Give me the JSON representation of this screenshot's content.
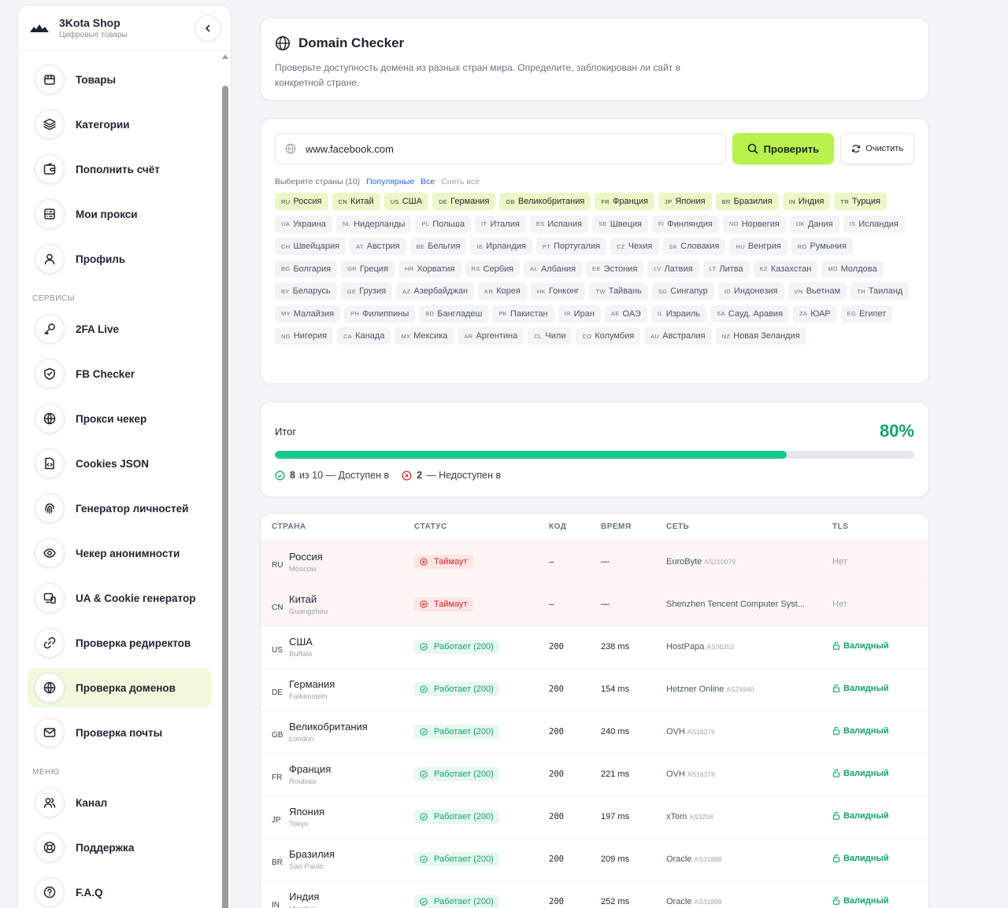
{
  "brand": {
    "name": "3Kota Shop",
    "subtitle": "Цифровые товары"
  },
  "sidebar": {
    "main": [
      {
        "label": "Товары",
        "icon": "box-icon"
      },
      {
        "label": "Категории",
        "icon": "layers-icon"
      },
      {
        "label": "Пополнить счёт",
        "icon": "wallet-icon"
      },
      {
        "label": "Мои прокси",
        "icon": "server-icon"
      },
      {
        "label": "Профиль",
        "icon": "user-icon"
      }
    ],
    "services_title": "СЕРВИСЫ",
    "services": [
      {
        "label": "2FA Live",
        "icon": "key-icon"
      },
      {
        "label": "FB Checker",
        "icon": "shield-icon"
      },
      {
        "label": "Прокси чекер",
        "icon": "globe-check-icon"
      },
      {
        "label": "Cookies JSON",
        "icon": "file-code-icon"
      },
      {
        "label": "Генератор личностей",
        "icon": "fingerprint-icon"
      },
      {
        "label": "Чекер анонимности",
        "icon": "eye-icon"
      },
      {
        "label": "UA & Cookie генератор",
        "icon": "devices-icon"
      },
      {
        "label": "Проверка редиректов",
        "icon": "link-icon"
      },
      {
        "label": "Проверка доменов",
        "icon": "globe-icon",
        "active": true
      },
      {
        "label": "Проверка почты",
        "icon": "mail-icon"
      }
    ],
    "menu_title": "МЕНЮ",
    "menu": [
      {
        "label": "Канал",
        "icon": "users-icon"
      },
      {
        "label": "Поддержка",
        "icon": "lifebuoy-icon"
      },
      {
        "label": "F.A.Q",
        "icon": "help-circle-icon"
      }
    ]
  },
  "header": {
    "title": "Domain Checker",
    "description": "Проверьте доступность домена из разных стран мира. Определите, заблокирован ли сайт в конкретной стране."
  },
  "search": {
    "value": "www.facebook.com",
    "check_label": "Проверить",
    "clear_label": "Очистить",
    "select_label": "Выберите страны (10)",
    "popular_label": "Популярные",
    "all_label": "Все",
    "reset_label": "Снять все"
  },
  "countries": [
    {
      "code": "RU",
      "name": "Россия",
      "selected": true
    },
    {
      "code": "CN",
      "name": "Китай",
      "selected": true
    },
    {
      "code": "US",
      "name": "США",
      "selected": true
    },
    {
      "code": "DE",
      "name": "Германия",
      "selected": true
    },
    {
      "code": "GB",
      "name": "Великобритания",
      "selected": true
    },
    {
      "code": "FR",
      "name": "Франция",
      "selected": true
    },
    {
      "code": "JP",
      "name": "Япония",
      "selected": true
    },
    {
      "code": "BR",
      "name": "Бразилия",
      "selected": true
    },
    {
      "code": "IN",
      "name": "Индия",
      "selected": true
    },
    {
      "code": "TR",
      "name": "Турция",
      "selected": true
    },
    {
      "code": "UA",
      "name": "Украина"
    },
    {
      "code": "NL",
      "name": "Нидерланды"
    },
    {
      "code": "PL",
      "name": "Польша"
    },
    {
      "code": "IT",
      "name": "Италия"
    },
    {
      "code": "ES",
      "name": "Испания"
    },
    {
      "code": "SE",
      "name": "Швеция"
    },
    {
      "code": "FI",
      "name": "Финляндия"
    },
    {
      "code": "NO",
      "name": "Норвегия"
    },
    {
      "code": "DK",
      "name": "Дания"
    },
    {
      "code": "IS",
      "name": "Исландия"
    },
    {
      "code": "CH",
      "name": "Швейцария"
    },
    {
      "code": "AT",
      "name": "Австрия"
    },
    {
      "code": "BE",
      "name": "Бельгия"
    },
    {
      "code": "IE",
      "name": "Ирландия"
    },
    {
      "code": "PT",
      "name": "Португалия"
    },
    {
      "code": "CZ",
      "name": "Чехия"
    },
    {
      "code": "SK",
      "name": "Словакия"
    },
    {
      "code": "HU",
      "name": "Венгрия"
    },
    {
      "code": "RO",
      "name": "Румыния"
    },
    {
      "code": "BG",
      "name": "Болгария"
    },
    {
      "code": "GR",
      "name": "Греция"
    },
    {
      "code": "HR",
      "name": "Хорватия"
    },
    {
      "code": "RS",
      "name": "Сербия"
    },
    {
      "code": "AL",
      "name": "Албания"
    },
    {
      "code": "EE",
      "name": "Эстония"
    },
    {
      "code": "LV",
      "name": "Латвия"
    },
    {
      "code": "LT",
      "name": "Литва"
    },
    {
      "code": "KZ",
      "name": "Казахстан"
    },
    {
      "code": "MD",
      "name": "Молдова"
    },
    {
      "code": "BY",
      "name": "Беларусь"
    },
    {
      "code": "GE",
      "name": "Грузия"
    },
    {
      "code": "AZ",
      "name": "Азербайджан"
    },
    {
      "code": "KR",
      "name": "Корея"
    },
    {
      "code": "HK",
      "name": "Гонконг"
    },
    {
      "code": "TW",
      "name": "Тайвань"
    },
    {
      "code": "SG",
      "name": "Сингапур"
    },
    {
      "code": "ID",
      "name": "Индонезия"
    },
    {
      "code": "VN",
      "name": "Вьетнам"
    },
    {
      "code": "TH",
      "name": "Таиланд"
    },
    {
      "code": "MY",
      "name": "Малайзия"
    },
    {
      "code": "PH",
      "name": "Филиппины"
    },
    {
      "code": "BD",
      "name": "Бангладеш"
    },
    {
      "code": "PK",
      "name": "Пакистан"
    },
    {
      "code": "IR",
      "name": "Иран"
    },
    {
      "code": "AE",
      "name": "ОАЭ"
    },
    {
      "code": "IL",
      "name": "Израиль"
    },
    {
      "code": "SA",
      "name": "Сауд. Аравия"
    },
    {
      "code": "ZA",
      "name": "ЮАР"
    },
    {
      "code": "EG",
      "name": "Египет"
    },
    {
      "code": "NG",
      "name": "Нигерия"
    },
    {
      "code": "CA",
      "name": "Канада"
    },
    {
      "code": "MX",
      "name": "Мексика"
    },
    {
      "code": "AR",
      "name": "Аргентина"
    },
    {
      "code": "CL",
      "name": "Чили"
    },
    {
      "code": "CO",
      "name": "Колумбия"
    },
    {
      "code": "AU",
      "name": "Австралия"
    },
    {
      "code": "NZ",
      "name": "Новая Зеландия"
    }
  ],
  "summary": {
    "label": "Итог",
    "percent_text": "80%",
    "progress": 0.8,
    "available_count": "8",
    "available_text": "из 10 — Доступен в",
    "unavailable_count": "2",
    "unavailable_text": "— Недоступен в"
  },
  "table": {
    "headers": [
      "СТРАНА",
      "СТАТУС",
      "КОД",
      "ВРЕМЯ",
      "СЕТЬ",
      "TLS"
    ],
    "rows": [
      {
        "code": "RU",
        "country": "Россия",
        "city": "Moscow",
        "status": "Таймаут",
        "ok": false,
        "http": "–",
        "time": "—",
        "network": "EuroByte",
        "asn": "AS210079",
        "tls": "Нет"
      },
      {
        "code": "CN",
        "country": "Китай",
        "city": "Guangzhou",
        "status": "Таймаут",
        "ok": false,
        "http": "–",
        "time": "—",
        "network": "Shenzhen Tencent Computer Syst...",
        "asn": "",
        "tls": "Нет"
      },
      {
        "code": "US",
        "country": "США",
        "city": "Buffalo",
        "status": "Работает (200)",
        "ok": true,
        "http": "200",
        "time": "238 ms",
        "network": "HostPapa",
        "asn": "AS36352",
        "tls": "Валидный"
      },
      {
        "code": "DE",
        "country": "Германия",
        "city": "Falkenstein",
        "status": "Работает (200)",
        "ok": true,
        "http": "200",
        "time": "154 ms",
        "network": "Hetzner Online",
        "asn": "AS24940",
        "tls": "Валидный"
      },
      {
        "code": "GB",
        "country": "Великобритания",
        "city": "London",
        "status": "Работает (200)",
        "ok": true,
        "http": "200",
        "time": "240 ms",
        "network": "OVH",
        "asn": "AS16276",
        "tls": "Валидный"
      },
      {
        "code": "FR",
        "country": "Франция",
        "city": "Roubaix",
        "status": "Работает (200)",
        "ok": true,
        "http": "200",
        "time": "221 ms",
        "network": "OVH",
        "asn": "AS16276",
        "tls": "Валидный"
      },
      {
        "code": "JP",
        "country": "Япония",
        "city": "Tokyo",
        "status": "Работает (200)",
        "ok": true,
        "http": "200",
        "time": "197 ms",
        "network": "xTom",
        "asn": "AS3258",
        "tls": "Валидный"
      },
      {
        "code": "BR",
        "country": "Бразилия",
        "city": "Sao Paulo",
        "status": "Работает (200)",
        "ok": true,
        "http": "200",
        "time": "209 ms",
        "network": "Oracle",
        "asn": "AS31898",
        "tls": "Валидный"
      },
      {
        "code": "IN",
        "country": "Индия",
        "city": "Mumbai",
        "status": "Работает (200)",
        "ok": true,
        "http": "200",
        "time": "252 ms",
        "network": "Oracle",
        "asn": "AS31898",
        "tls": "Валидный"
      }
    ]
  },
  "colors": {
    "accent": "#b8f24a",
    "success": "#10a36b",
    "progress": "#19c98a",
    "error": "#dc2626"
  }
}
